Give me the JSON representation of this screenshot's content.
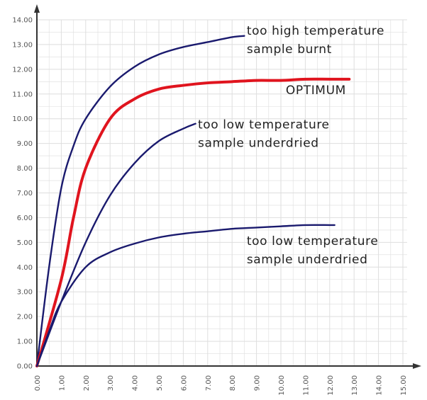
{
  "chart_data": {
    "type": "line",
    "title": "",
    "xlabel": "",
    "ylabel": "",
    "xlim": [
      0,
      15
    ],
    "ylim": [
      0,
      14
    ],
    "grid": true,
    "x_tick_labels": [
      "0.00",
      "1.00",
      "2.00",
      "3.00",
      "4.00",
      "5.00",
      "6.00",
      "7.00",
      "8.00",
      "9.00",
      "10.00",
      "11.00",
      "12.00",
      "13.00",
      "14.00",
      "15.00"
    ],
    "y_tick_labels": [
      "0.00",
      "1.00",
      "2.00",
      "3.00",
      "4.00",
      "5.00",
      "6.00",
      "7.00",
      "8.00",
      "9.00",
      "10.00",
      "11.00",
      "12.00",
      "13.00",
      "14.00"
    ],
    "series": [
      {
        "color": "#1a1a6e",
        "points": [
          [
            0,
            0
          ],
          [
            0.5,
            4.0
          ],
          [
            1.0,
            7.2
          ],
          [
            1.5,
            8.9
          ],
          [
            2.0,
            10.0
          ],
          [
            3.0,
            11.3
          ],
          [
            4.0,
            12.1
          ],
          [
            5.0,
            12.6
          ],
          [
            6.0,
            12.9
          ],
          [
            7.0,
            13.1
          ],
          [
            8.0,
            13.3
          ],
          [
            8.5,
            13.35
          ]
        ]
      },
      {
        "color": "#e0141e",
        "points": [
          [
            0,
            0
          ],
          [
            1.0,
            3.5
          ],
          [
            1.5,
            6.0
          ],
          [
            2.0,
            8.0
          ],
          [
            3.0,
            10.0
          ],
          [
            4.0,
            10.8
          ],
          [
            5.0,
            11.2
          ],
          [
            6.0,
            11.35
          ],
          [
            7.0,
            11.45
          ],
          [
            8.0,
            11.5
          ],
          [
            9.0,
            11.55
          ],
          [
            10.0,
            11.55
          ],
          [
            11.0,
            11.6
          ],
          [
            12.0,
            11.6
          ],
          [
            12.8,
            11.6
          ]
        ]
      },
      {
        "color": "#1a1a6e",
        "points": [
          [
            0,
            0
          ],
          [
            1.0,
            2.6
          ],
          [
            2.0,
            5.0
          ],
          [
            3.0,
            6.9
          ],
          [
            4.0,
            8.2
          ],
          [
            5.0,
            9.1
          ],
          [
            6.0,
            9.6
          ],
          [
            6.5,
            9.8
          ]
        ]
      },
      {
        "color": "#1a1a6e",
        "points": [
          [
            0,
            0
          ],
          [
            0.5,
            1.4
          ],
          [
            1.0,
            2.6
          ],
          [
            2.0,
            4.0
          ],
          [
            3.0,
            4.6
          ],
          [
            4.0,
            4.95
          ],
          [
            5.0,
            5.2
          ],
          [
            6.0,
            5.35
          ],
          [
            7.0,
            5.45
          ],
          [
            8.0,
            5.55
          ],
          [
            9.0,
            5.6
          ],
          [
            10.0,
            5.65
          ],
          [
            11.0,
            5.7
          ],
          [
            12.0,
            5.7
          ],
          [
            12.2,
            5.7
          ]
        ]
      }
    ],
    "annotations": [
      {
        "lines": [
          "too high temperature",
          "sample burnt"
        ],
        "x": 8.6,
        "y": 13.4
      },
      {
        "lines": [
          "OPTIMUM"
        ],
        "x": 10.2,
        "y": 11.0
      },
      {
        "lines": [
          "too low temperature",
          "sample underdried"
        ],
        "x": 6.6,
        "y": 9.6
      },
      {
        "lines": [
          "too low temperature",
          "sample underdried"
        ],
        "x": 8.6,
        "y": 4.9
      }
    ],
    "colors": {
      "grid": "#dedede",
      "axis": "#333333",
      "curve_dark": "#1a1a6e",
      "curve_red": "#e0141e"
    }
  }
}
